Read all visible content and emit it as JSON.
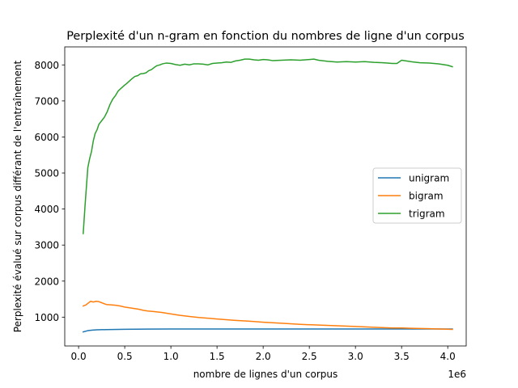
{
  "chart_data": {
    "type": "line",
    "title": "Perplexité d'un n-gram en fonction du nombres de ligne d'un corpus",
    "xlabel": "nombre de lignes d'un corpus",
    "ylabel": "Perplexité évalué sur corpus différant de l'entraînement",
    "x_offset_label": "1e6",
    "xlim": [
      -0.15,
      4.2
    ],
    "ylim": [
      200,
      8500
    ],
    "x_ticks": [
      0.0,
      0.5,
      1.0,
      1.5,
      2.0,
      2.5,
      3.0,
      3.5,
      4.0
    ],
    "x_tick_labels": [
      "0.0",
      "0.5",
      "1.0",
      "1.5",
      "2.0",
      "2.5",
      "3.0",
      "3.5",
      "4.0"
    ],
    "y_ticks": [
      1000,
      2000,
      3000,
      4000,
      5000,
      6000,
      7000,
      8000
    ],
    "y_tick_labels": [
      "1000",
      "2000",
      "3000",
      "4000",
      "5000",
      "6000",
      "7000",
      "8000"
    ],
    "grid": false,
    "legend_position": "center-right",
    "series": [
      {
        "name": "unigram",
        "color": "#1f77b4",
        "x": [
          0.05,
          0.1,
          0.15,
          0.2,
          0.3,
          0.5,
          0.75,
          1.0,
          1.5,
          2.0,
          2.5,
          3.0,
          3.5,
          4.05
        ],
        "values": [
          590,
          625,
          640,
          648,
          655,
          662,
          667,
          670,
          672,
          672,
          672,
          671,
          670,
          670
        ]
      },
      {
        "name": "bigram",
        "color": "#ff7f0e",
        "x": [
          0.05,
          0.08,
          0.1,
          0.13,
          0.16,
          0.19,
          0.22,
          0.25,
          0.3,
          0.35,
          0.4,
          0.45,
          0.5,
          0.55,
          0.6,
          0.65,
          0.7,
          0.75,
          0.8,
          0.9,
          1.0,
          1.1,
          1.2,
          1.3,
          1.4,
          1.5,
          1.6,
          1.7,
          1.8,
          1.9,
          2.0,
          2.2,
          2.4,
          2.6,
          2.8,
          3.0,
          3.2,
          3.4,
          3.5,
          3.6,
          3.8,
          4.05
        ],
        "values": [
          1310,
          1340,
          1380,
          1440,
          1420,
          1440,
          1430,
          1400,
          1350,
          1340,
          1330,
          1310,
          1280,
          1260,
          1240,
          1220,
          1190,
          1170,
          1160,
          1130,
          1090,
          1050,
          1020,
          990,
          970,
          950,
          930,
          910,
          895,
          880,
          860,
          830,
          800,
          780,
          760,
          740,
          720,
          700,
          700,
          690,
          680,
          660
        ]
      },
      {
        "name": "trigram",
        "color": "#2ca02c",
        "x": [
          0.05,
          0.07,
          0.1,
          0.12,
          0.14,
          0.16,
          0.18,
          0.2,
          0.22,
          0.25,
          0.28,
          0.31,
          0.34,
          0.37,
          0.4,
          0.43,
          0.46,
          0.49,
          0.52,
          0.55,
          0.58,
          0.61,
          0.64,
          0.67,
          0.7,
          0.73,
          0.76,
          0.79,
          0.82,
          0.85,
          0.88,
          0.91,
          0.95,
          1.0,
          1.05,
          1.1,
          1.15,
          1.2,
          1.25,
          1.3,
          1.35,
          1.4,
          1.45,
          1.5,
          1.55,
          1.6,
          1.65,
          1.7,
          1.75,
          1.8,
          1.85,
          1.9,
          1.95,
          2.0,
          2.05,
          2.1,
          2.2,
          2.3,
          2.4,
          2.5,
          2.55,
          2.6,
          2.7,
          2.8,
          2.9,
          3.0,
          3.1,
          3.2,
          3.3,
          3.4,
          3.45,
          3.5,
          3.55,
          3.6,
          3.7,
          3.8,
          3.9,
          4.0,
          4.05
        ],
        "values": [
          3320,
          4100,
          5150,
          5400,
          5600,
          5900,
          6100,
          6200,
          6350,
          6450,
          6550,
          6700,
          6900,
          7050,
          7150,
          7280,
          7350,
          7420,
          7480,
          7550,
          7620,
          7680,
          7700,
          7750,
          7760,
          7780,
          7840,
          7870,
          7930,
          7980,
          8000,
          8030,
          8050,
          8040,
          8010,
          7990,
          8020,
          8000,
          8030,
          8030,
          8020,
          8000,
          8040,
          8050,
          8060,
          8080,
          8070,
          8110,
          8130,
          8160,
          8160,
          8140,
          8130,
          8150,
          8140,
          8120,
          8130,
          8140,
          8130,
          8150,
          8160,
          8130,
          8100,
          8080,
          8090,
          8080,
          8090,
          8070,
          8060,
          8040,
          8040,
          8130,
          8110,
          8090,
          8060,
          8050,
          8030,
          7990,
          7950
        ]
      }
    ]
  }
}
